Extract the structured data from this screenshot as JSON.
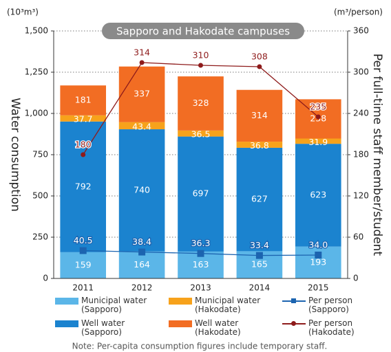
{
  "chart_data": {
    "type": "bar",
    "title": "Sapporo and Hakodate campuses",
    "y_label": "Water consumption",
    "y2_label": "Per full-time staff member/student",
    "y_unit": "(10³m³)",
    "y2_unit": "(m³/person)",
    "note": "Note: Per-capita consumption figures include temporary staff.",
    "categories": [
      "2011",
      "2012",
      "2013",
      "2014",
      "2015"
    ],
    "series": [
      {
        "name": "Municipal water\n(Sapporo)",
        "color": "#5bb6e8",
        "values": [
          159,
          164,
          163,
          165,
          193
        ]
      },
      {
        "name": "Well water\n(Sapporo)",
        "color": "#1b83cf",
        "values": [
          792,
          740,
          697,
          627,
          623
        ]
      },
      {
        "name": "Municipal water\n(Hakodate)",
        "color": "#f7a21b",
        "values": [
          37.7,
          43.4,
          36.5,
          36.8,
          31.9
        ]
      },
      {
        "name": "Well water\n(Hakodate)",
        "color": "#f26d23",
        "values": [
          181,
          337,
          328,
          314,
          238
        ]
      },
      {
        "name": "Per person\n(Sapporo)",
        "color": "#1c64b0",
        "type": "line",
        "axis": "y2",
        "values": [
          40.5,
          38.4,
          36.3,
          33.4,
          34.0
        ],
        "value_labels": [
          "40.5",
          "38.4",
          "36.3",
          "33.4",
          "34.0"
        ]
      },
      {
        "name": "Per person\n(Hakodate)",
        "color": "#8e1b1b",
        "type": "line",
        "axis": "y2",
        "values": [
          180,
          314,
          310,
          308,
          235
        ]
      }
    ],
    "ylim": [
      0,
      1500
    ],
    "yticks": [
      0,
      250,
      500,
      750,
      {
        "value": 1000,
        "label": "1,000"
      },
      {
        "value": 1250,
        "label": "1,250"
      },
      {
        "value": 1500,
        "label": "1,500"
      }
    ],
    "y2lim": [
      0,
      360
    ],
    "y2ticks": [
      0,
      60,
      120,
      180,
      240,
      300,
      360
    ],
    "grid": true
  }
}
